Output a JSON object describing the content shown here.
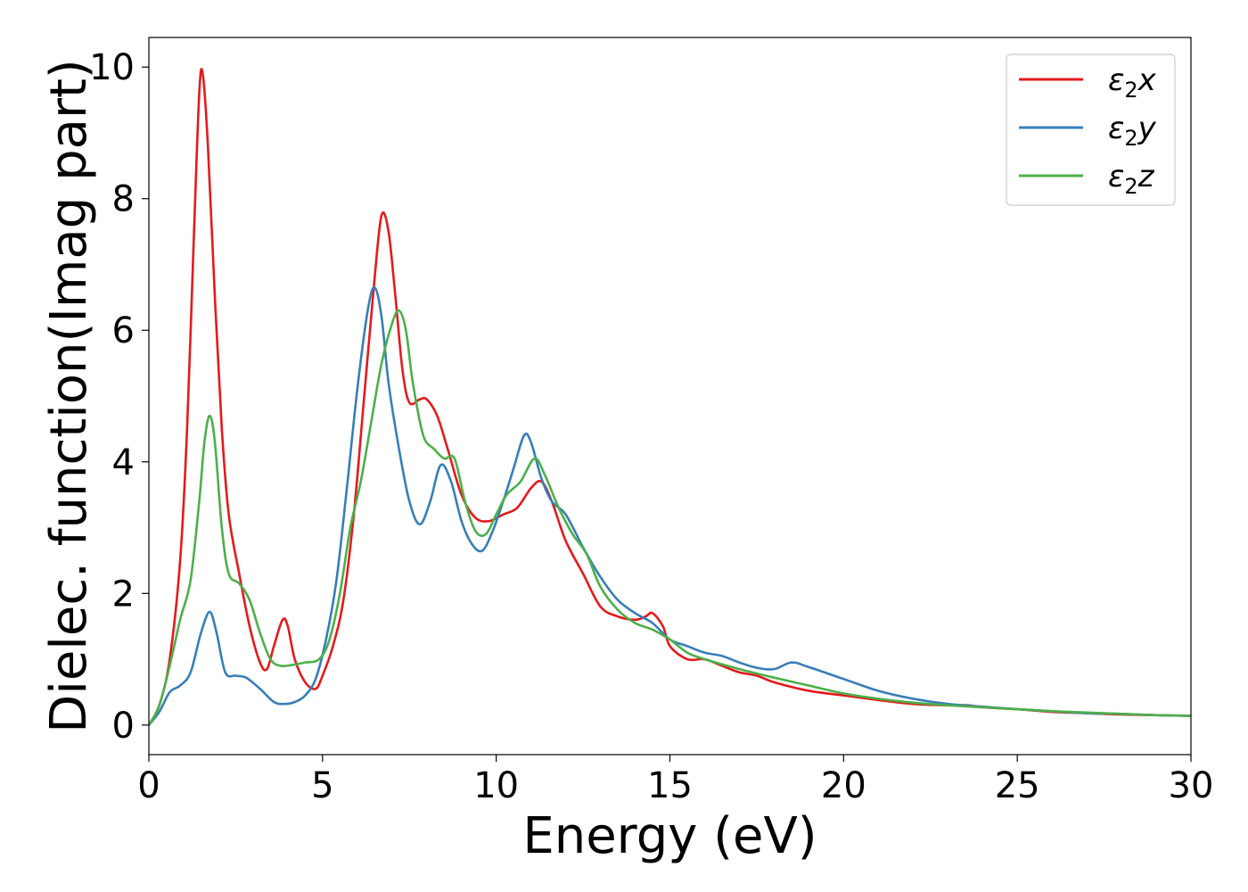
{
  "chart_data": {
    "type": "line",
    "title": "",
    "xlabel": "Energy (eV)",
    "ylabel": "Dielec. function(Imag part)",
    "xlim": [
      0,
      30
    ],
    "ylim": [
      -0.45,
      10.45
    ],
    "xticks": [
      0,
      5,
      10,
      15,
      20,
      25,
      30
    ],
    "yticks": [
      0,
      2,
      4,
      6,
      8,
      10
    ],
    "grid": false,
    "legend_position": "top-right",
    "series": [
      {
        "name": "ε₂x",
        "legend_base": "ε",
        "legend_sub": "2",
        "legend_var": "x",
        "color": "#e41a1c",
        "points": [
          [
            0,
            0
          ],
          [
            0.3,
            0.3
          ],
          [
            0.6,
            1.0
          ],
          [
            0.9,
            2.5
          ],
          [
            1.1,
            4.5
          ],
          [
            1.3,
            7.5
          ],
          [
            1.45,
            9.6
          ],
          [
            1.55,
            9.9
          ],
          [
            1.7,
            8.8
          ],
          [
            1.9,
            6.5
          ],
          [
            2.1,
            4.5
          ],
          [
            2.3,
            3.2
          ],
          [
            2.6,
            2.3
          ],
          [
            2.9,
            1.5
          ],
          [
            3.2,
            0.95
          ],
          [
            3.4,
            0.85
          ],
          [
            3.6,
            1.2
          ],
          [
            3.85,
            1.6
          ],
          [
            4.0,
            1.5
          ],
          [
            4.2,
            1.0
          ],
          [
            4.5,
            0.65
          ],
          [
            4.8,
            0.55
          ],
          [
            5.0,
            0.75
          ],
          [
            5.3,
            1.2
          ],
          [
            5.6,
            1.9
          ],
          [
            5.9,
            3.2
          ],
          [
            6.2,
            5.0
          ],
          [
            6.5,
            6.8
          ],
          [
            6.7,
            7.75
          ],
          [
            6.9,
            7.5
          ],
          [
            7.1,
            6.5
          ],
          [
            7.3,
            5.4
          ],
          [
            7.5,
            4.9
          ],
          [
            7.8,
            4.95
          ],
          [
            8.0,
            4.95
          ],
          [
            8.3,
            4.7
          ],
          [
            8.6,
            4.2
          ],
          [
            9.0,
            3.5
          ],
          [
            9.4,
            3.15
          ],
          [
            9.8,
            3.1
          ],
          [
            10.2,
            3.2
          ],
          [
            10.6,
            3.3
          ],
          [
            11.0,
            3.6
          ],
          [
            11.3,
            3.7
          ],
          [
            11.6,
            3.4
          ],
          [
            12.0,
            2.8
          ],
          [
            12.5,
            2.3
          ],
          [
            13.0,
            1.8
          ],
          [
            13.5,
            1.65
          ],
          [
            14.0,
            1.6
          ],
          [
            14.3,
            1.65
          ],
          [
            14.5,
            1.7
          ],
          [
            14.8,
            1.5
          ],
          [
            15.0,
            1.2
          ],
          [
            15.5,
            1.0
          ],
          [
            16.0,
            1.0
          ],
          [
            16.5,
            0.9
          ],
          [
            17.0,
            0.8
          ],
          [
            17.5,
            0.75
          ],
          [
            18.0,
            0.65
          ],
          [
            19.0,
            0.52
          ],
          [
            20.0,
            0.45
          ],
          [
            21.0,
            0.38
          ],
          [
            22.0,
            0.32
          ],
          [
            23.0,
            0.3
          ],
          [
            23.6,
            0.3
          ],
          [
            24.0,
            0.27
          ],
          [
            25.0,
            0.24
          ],
          [
            26.0,
            0.2
          ],
          [
            27.0,
            0.18
          ],
          [
            28.0,
            0.16
          ],
          [
            29.0,
            0.15
          ],
          [
            30.0,
            0.14
          ]
        ]
      },
      {
        "name": "ε₂y",
        "legend_base": "ε",
        "legend_sub": "2",
        "legend_var": "y",
        "color": "#377eb8",
        "points": [
          [
            0,
            0
          ],
          [
            0.3,
            0.2
          ],
          [
            0.6,
            0.5
          ],
          [
            0.9,
            0.6
          ],
          [
            1.2,
            0.8
          ],
          [
            1.5,
            1.4
          ],
          [
            1.75,
            1.72
          ],
          [
            1.95,
            1.4
          ],
          [
            2.2,
            0.8
          ],
          [
            2.5,
            0.75
          ],
          [
            2.8,
            0.72
          ],
          [
            3.2,
            0.55
          ],
          [
            3.6,
            0.35
          ],
          [
            3.9,
            0.32
          ],
          [
            4.2,
            0.35
          ],
          [
            4.5,
            0.45
          ],
          [
            4.8,
            0.7
          ],
          [
            5.1,
            1.3
          ],
          [
            5.4,
            2.2
          ],
          [
            5.7,
            3.6
          ],
          [
            6.0,
            5.1
          ],
          [
            6.3,
            6.3
          ],
          [
            6.5,
            6.65
          ],
          [
            6.7,
            6.2
          ],
          [
            6.9,
            5.2
          ],
          [
            7.2,
            4.2
          ],
          [
            7.5,
            3.4
          ],
          [
            7.8,
            3.05
          ],
          [
            8.1,
            3.4
          ],
          [
            8.4,
            3.95
          ],
          [
            8.7,
            3.7
          ],
          [
            9.0,
            3.1
          ],
          [
            9.3,
            2.75
          ],
          [
            9.6,
            2.65
          ],
          [
            9.9,
            2.95
          ],
          [
            10.2,
            3.4
          ],
          [
            10.5,
            3.9
          ],
          [
            10.8,
            4.4
          ],
          [
            11.0,
            4.3
          ],
          [
            11.3,
            3.75
          ],
          [
            11.6,
            3.4
          ],
          [
            12.0,
            3.2
          ],
          [
            12.5,
            2.7
          ],
          [
            13.0,
            2.25
          ],
          [
            13.5,
            1.9
          ],
          [
            14.0,
            1.7
          ],
          [
            14.5,
            1.55
          ],
          [
            15.0,
            1.3
          ],
          [
            15.5,
            1.2
          ],
          [
            16.0,
            1.1
          ],
          [
            16.5,
            1.05
          ],
          [
            17.0,
            0.95
          ],
          [
            17.5,
            0.87
          ],
          [
            18.0,
            0.85
          ],
          [
            18.5,
            0.95
          ],
          [
            19.0,
            0.88
          ],
          [
            20.0,
            0.7
          ],
          [
            21.0,
            0.52
          ],
          [
            22.0,
            0.4
          ],
          [
            23.0,
            0.32
          ],
          [
            24.0,
            0.28
          ],
          [
            25.0,
            0.24
          ],
          [
            26.0,
            0.21
          ],
          [
            27.0,
            0.18
          ],
          [
            28.0,
            0.17
          ],
          [
            29.0,
            0.15
          ],
          [
            30.0,
            0.14
          ]
        ]
      },
      {
        "name": "ε₂z",
        "legend_base": "ε",
        "legend_sub": "2",
        "legend_var": "z",
        "color": "#4daf4a",
        "points": [
          [
            0,
            0
          ],
          [
            0.3,
            0.3
          ],
          [
            0.6,
            0.9
          ],
          [
            0.9,
            1.6
          ],
          [
            1.2,
            2.2
          ],
          [
            1.45,
            3.4
          ],
          [
            1.6,
            4.3
          ],
          [
            1.75,
            4.7
          ],
          [
            1.9,
            4.3
          ],
          [
            2.1,
            3.0
          ],
          [
            2.3,
            2.3
          ],
          [
            2.6,
            2.15
          ],
          [
            2.9,
            1.9
          ],
          [
            3.2,
            1.4
          ],
          [
            3.5,
            1.0
          ],
          [
            3.8,
            0.9
          ],
          [
            4.2,
            0.92
          ],
          [
            4.5,
            0.95
          ],
          [
            4.9,
            1.0
          ],
          [
            5.2,
            1.3
          ],
          [
            5.5,
            2.0
          ],
          [
            5.8,
            3.0
          ],
          [
            6.1,
            3.7
          ],
          [
            6.4,
            4.6
          ],
          [
            6.7,
            5.5
          ],
          [
            7.0,
            6.1
          ],
          [
            7.2,
            6.3
          ],
          [
            7.4,
            6.0
          ],
          [
            7.6,
            5.2
          ],
          [
            7.9,
            4.4
          ],
          [
            8.2,
            4.2
          ],
          [
            8.5,
            4.05
          ],
          [
            8.8,
            4.05
          ],
          [
            9.1,
            3.4
          ],
          [
            9.4,
            2.95
          ],
          [
            9.7,
            2.9
          ],
          [
            10.0,
            3.2
          ],
          [
            10.3,
            3.5
          ],
          [
            10.7,
            3.7
          ],
          [
            11.1,
            4.05
          ],
          [
            11.4,
            3.8
          ],
          [
            11.8,
            3.3
          ],
          [
            12.2,
            2.9
          ],
          [
            12.6,
            2.6
          ],
          [
            13.0,
            2.1
          ],
          [
            13.5,
            1.75
          ],
          [
            14.0,
            1.55
          ],
          [
            14.5,
            1.45
          ],
          [
            15.0,
            1.3
          ],
          [
            15.5,
            1.1
          ],
          [
            16.0,
            1.0
          ],
          [
            17.0,
            0.85
          ],
          [
            18.0,
            0.72
          ],
          [
            19.0,
            0.6
          ],
          [
            20.0,
            0.48
          ],
          [
            21.0,
            0.4
          ],
          [
            22.0,
            0.34
          ],
          [
            23.0,
            0.3
          ],
          [
            24.0,
            0.27
          ],
          [
            25.0,
            0.24
          ],
          [
            26.0,
            0.21
          ],
          [
            27.0,
            0.19
          ],
          [
            28.0,
            0.17
          ],
          [
            29.0,
            0.15
          ],
          [
            30.0,
            0.14
          ]
        ]
      }
    ]
  }
}
